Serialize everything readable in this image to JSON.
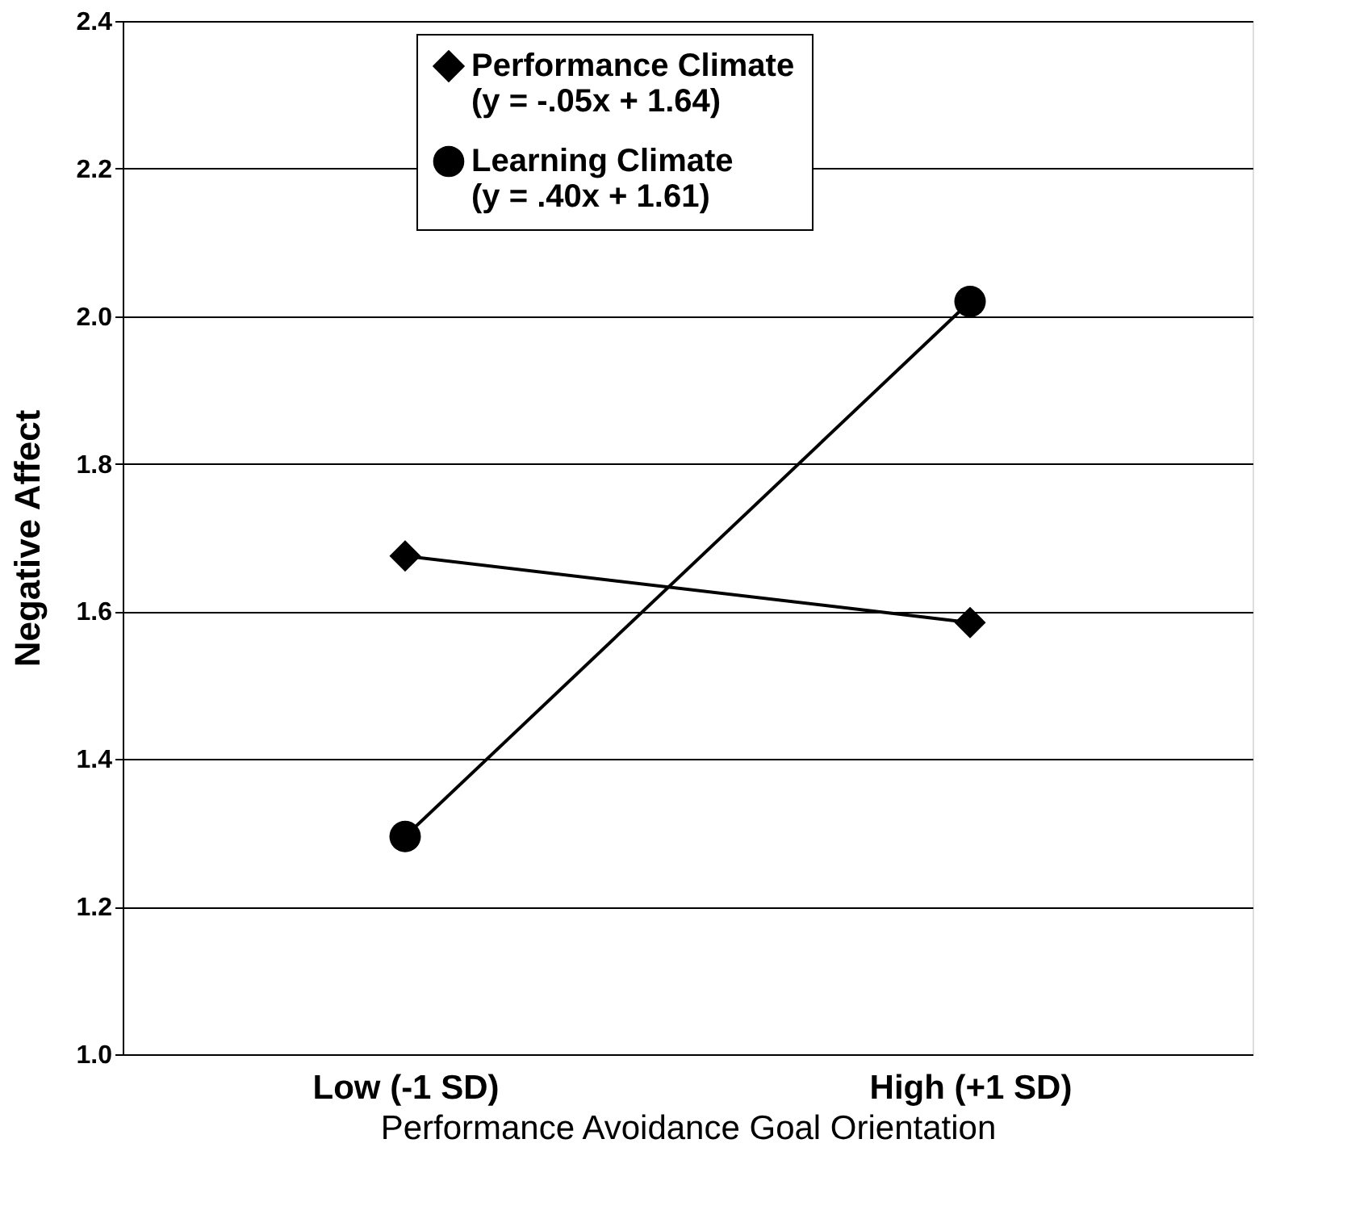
{
  "chart_data": {
    "type": "line",
    "xlabel": "Performance Avoidance Goal Orientation",
    "ylabel": "Negative Affect",
    "categories": [
      "Low (-1 SD)",
      "High (+1 SD)"
    ],
    "series": [
      {
        "name": "Performance Climate\n(y = -.05x + 1.64)",
        "color": "#000000",
        "marker": "diamond",
        "values": [
          1.675,
          1.585
        ]
      },
      {
        "name": "Learning Climate\n(y = .40x + 1.61)",
        "color": "#000000",
        "marker": "circle",
        "values": [
          1.295,
          2.02
        ]
      }
    ],
    "ylim": [
      1.0,
      2.4
    ],
    "yticks": [
      {
        "value": 1,
        "label": "1.0"
      },
      1.2,
      1.4,
      1.6,
      1.8,
      {
        "value": 2,
        "label": "2.0"
      },
      2.2,
      2.4
    ],
    "grid": "y",
    "legend": "top",
    "line_style": "solid"
  }
}
